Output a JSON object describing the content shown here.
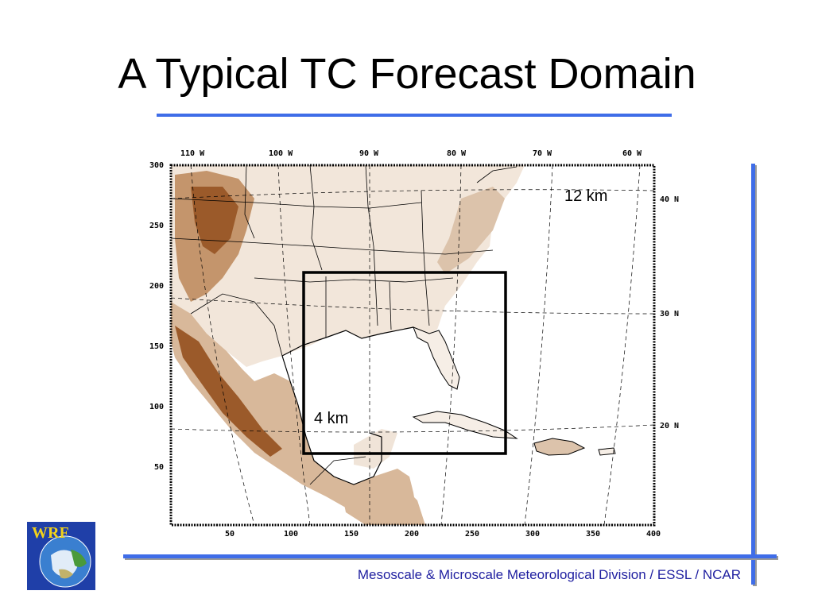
{
  "title": "A Typical TC Forecast Domain",
  "footer": "Mesoscale & Microscale Meteorological Division / ESSL / NCAR",
  "logo": {
    "text": "WRF",
    "icon": "wrf-globe-logo"
  },
  "map": {
    "outer_domain_label": "12 km",
    "inner_domain_label": "4 km",
    "top_lon_labels": [
      "110 W",
      "100 W",
      "90 W",
      "80 W",
      "70 W",
      "60 W"
    ],
    "right_lat_labels": [
      "40 N",
      "30 N",
      "20 N"
    ],
    "left_grid_labels": [
      "300",
      "250",
      "200",
      "150",
      "100",
      "50"
    ],
    "bottom_grid_labels": [
      "50",
      "100",
      "150",
      "200",
      "250",
      "300",
      "350",
      "400"
    ],
    "colors": {
      "terrain_high": "#8b4a1c",
      "terrain_mid": "#c99a74",
      "terrain_low": "#efe2d6",
      "ocean": "#ffffff"
    }
  },
  "colors": {
    "accent": "#3f6de8",
    "footer_text": "#1f1fa0"
  }
}
